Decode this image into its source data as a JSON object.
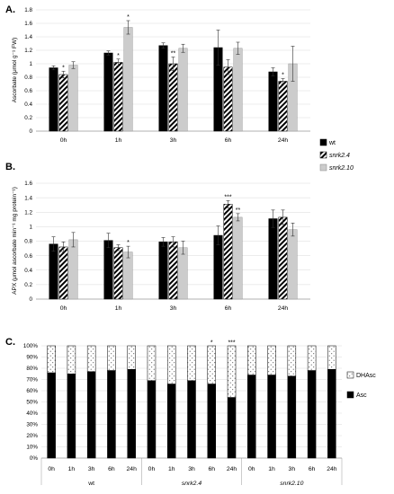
{
  "chart_data": [
    {
      "type": "bar",
      "panel_label": "A.",
      "ylabel": "Ascorbate (μmol g⁻¹ FW)",
      "xlabel": "",
      "categories": [
        "0h",
        "1h",
        "3h",
        "6h",
        "24h"
      ],
      "ylim": [
        0,
        1.8
      ],
      "yticks": [
        "0",
        "0.2",
        "0.4",
        "0.6",
        "0.8",
        "1",
        "1.2",
        "1.4",
        "1.6",
        "1.8"
      ],
      "grid": true,
      "legend": "right",
      "series": [
        {
          "name": "wt",
          "values": [
            0.94,
            1.16,
            1.27,
            1.24,
            0.88
          ],
          "errors": [
            0.03,
            0.03,
            0.04,
            0.26,
            0.06
          ]
        },
        {
          "name": "snrk2.4",
          "values": [
            0.84,
            1.02,
            1.0,
            0.95,
            0.74
          ],
          "errors": [
            0.05,
            0.05,
            0.1,
            0.11,
            0.04
          ]
        },
        {
          "name": "snrk2.10",
          "values": [
            0.98,
            1.54,
            1.23,
            1.23,
            1.0
          ],
          "errors": [
            0.05,
            0.1,
            0.06,
            0.09,
            0.26
          ]
        }
      ],
      "significance": [
        [
          "",
          "*",
          ""
        ],
        [
          "",
          "*",
          "*"
        ],
        [
          "",
          "**",
          ""
        ],
        [
          "",
          "",
          ""
        ],
        [
          "",
          "*",
          ""
        ]
      ]
    },
    {
      "type": "bar",
      "panel_label": "B.",
      "ylabel": "APX (μmol ascorbate min⁻¹ mg protein⁻¹)",
      "xlabel": "",
      "categories": [
        "0h",
        "1h",
        "3h",
        "6h",
        "24h"
      ],
      "ylim": [
        0,
        1.6
      ],
      "yticks": [
        "0",
        "0.2",
        "0.4",
        "0.6",
        "0.8",
        "1",
        "1.2",
        "1.4",
        "1.6"
      ],
      "grid": true,
      "legend": "",
      "series": [
        {
          "name": "wt",
          "values": [
            0.76,
            0.81,
            0.79,
            0.88,
            1.11
          ],
          "errors": [
            0.1,
            0.1,
            0.06,
            0.13,
            0.12
          ]
        },
        {
          "name": "snrk2.4",
          "values": [
            0.72,
            0.71,
            0.79,
            1.31,
            1.13
          ],
          "errors": [
            0.07,
            0.04,
            0.07,
            0.05,
            0.1
          ]
        },
        {
          "name": "snrk2.10",
          "values": [
            0.82,
            0.65,
            0.71,
            1.13,
            0.96
          ],
          "errors": [
            0.1,
            0.08,
            0.09,
            0.05,
            0.09
          ]
        }
      ],
      "significance": [
        [
          "",
          "",
          ""
        ],
        [
          "",
          "",
          "*"
        ],
        [
          "",
          "",
          ""
        ],
        [
          "",
          "***",
          "**"
        ],
        [
          "",
          "",
          ""
        ]
      ]
    },
    {
      "type": "bar",
      "stacked": true,
      "panel_label": "C.",
      "ylabel": "",
      "xlabel": "",
      "categories": [
        "0h",
        "1h",
        "3h",
        "6h",
        "24h",
        "0h",
        "1h",
        "3h",
        "6h",
        "24h",
        "0h",
        "1h",
        "3h",
        "6h",
        "24h"
      ],
      "groups": [
        "wt",
        "snrk2.4",
        "snrk2.10"
      ],
      "ylim": [
        0,
        100
      ],
      "yticks": [
        "0%",
        "10%",
        "20%",
        "30%",
        "40%",
        "50%",
        "60%",
        "70%",
        "80%",
        "90%",
        "100%"
      ],
      "grid": true,
      "legend": "right",
      "series": [
        {
          "name": "Asc",
          "values": [
            76,
            75,
            77,
            78,
            79,
            69,
            66,
            69,
            66,
            54,
            74,
            74,
            73,
            78,
            79
          ]
        },
        {
          "name": "DHAsc",
          "values": [
            24,
            25,
            23,
            22,
            21,
            31,
            34,
            31,
            34,
            46,
            26,
            26,
            27,
            22,
            21
          ]
        }
      ],
      "significance": [
        "",
        "",
        "",
        "",
        "",
        "",
        "",
        "",
        "*",
        "***",
        "",
        "",
        "",
        "",
        ""
      ]
    }
  ]
}
